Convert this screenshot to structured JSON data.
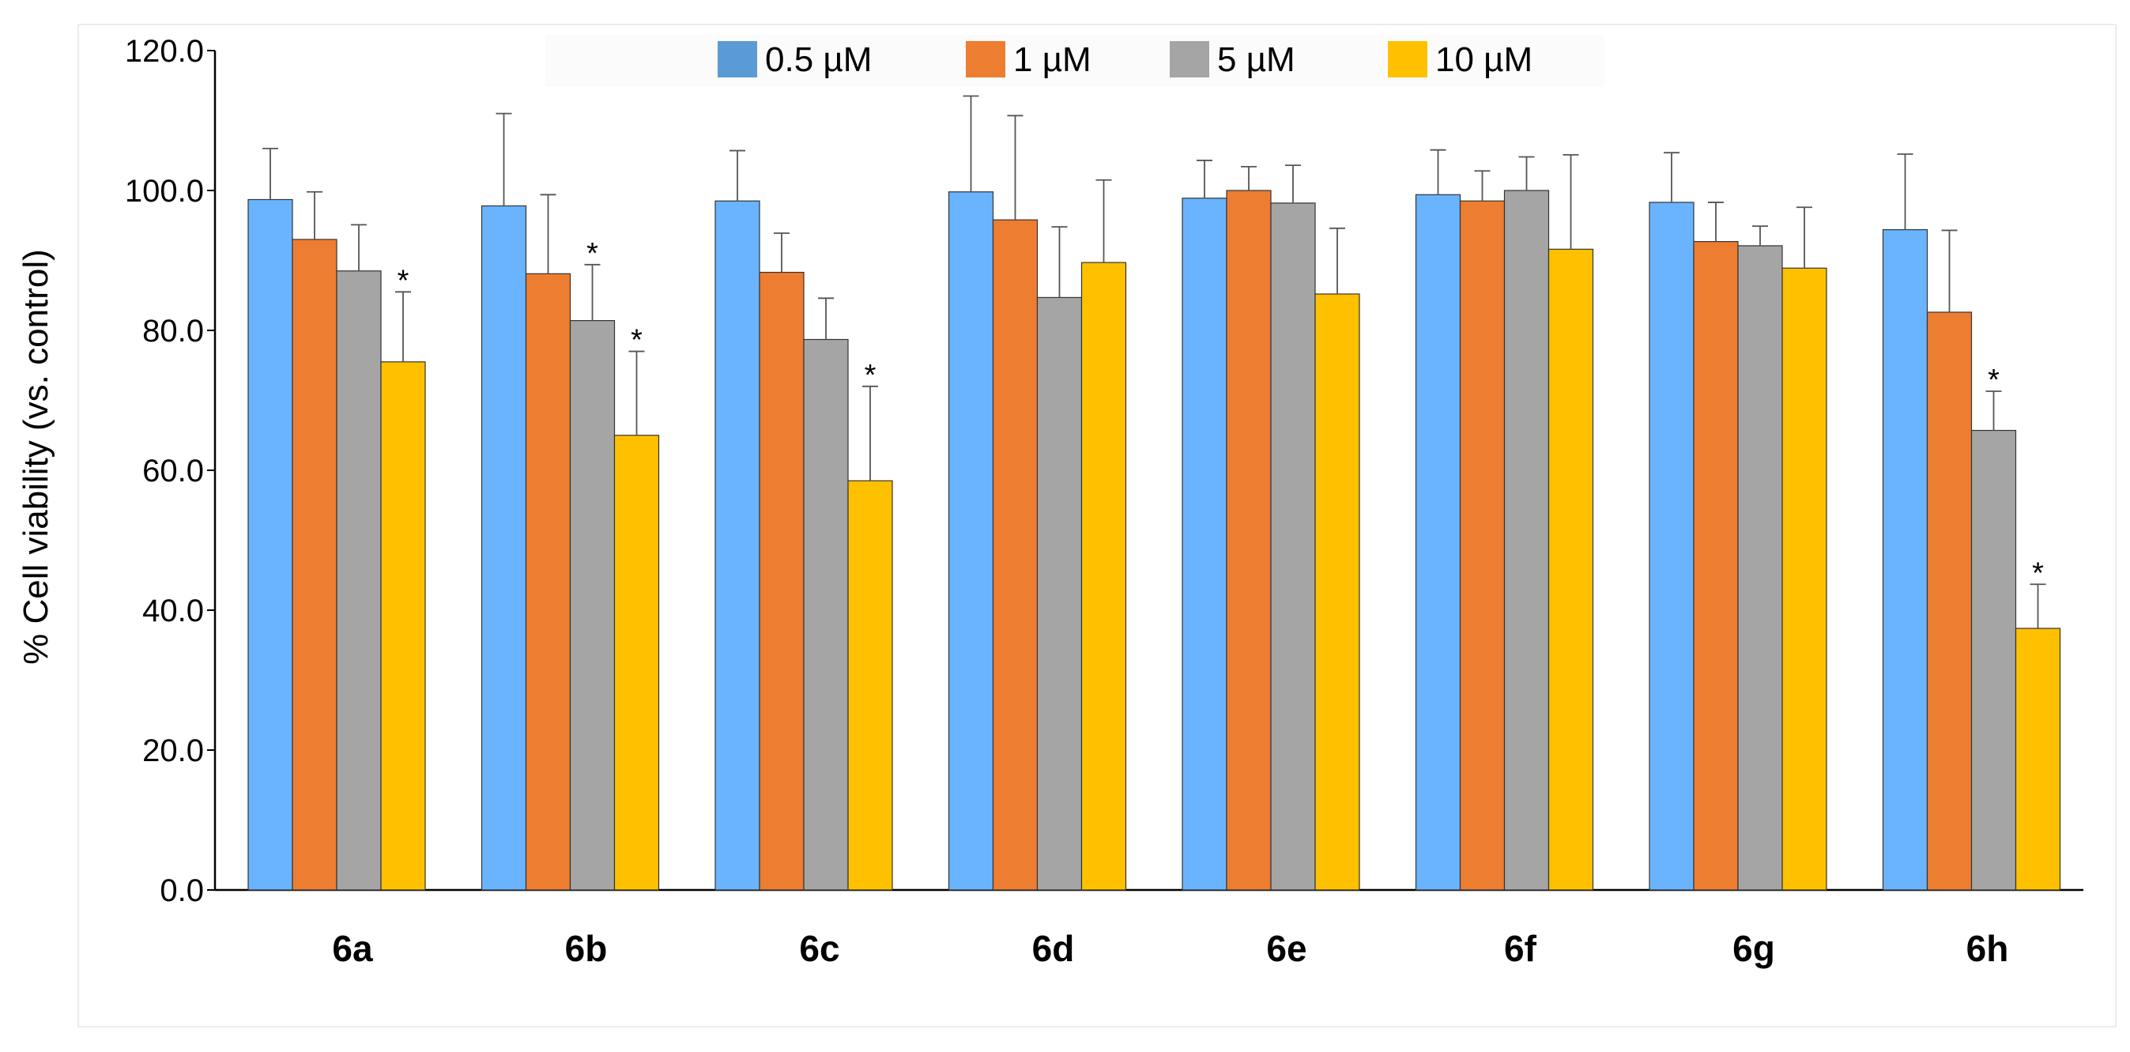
{
  "chart_data": {
    "type": "bar",
    "title": "",
    "xlabel": "",
    "ylabel": "% Cell viability (vs. control)",
    "ylim": [
      0,
      120
    ],
    "yticks": [
      "0.0",
      "20.0",
      "40.0",
      "60.0",
      "80.0",
      "100.0",
      "120.0"
    ],
    "grid": false,
    "legend_position": "top-center",
    "categories": [
      "6a",
      "6b",
      "6c",
      "6d",
      "6e",
      "6f",
      "6g",
      "6h"
    ],
    "series": [
      {
        "name": "0.5 µM",
        "color": "#6ab4ff",
        "legend_color": "#5b9bd5",
        "values": [
          98.7,
          97.8,
          98.5,
          99.8,
          98.9,
          99.4,
          98.3,
          94.4
        ],
        "errors": [
          7.3,
          13.2,
          7.2,
          13.7,
          5.4,
          6.4,
          7.1,
          10.8
        ],
        "significant": [
          false,
          false,
          false,
          false,
          false,
          false,
          false,
          false
        ]
      },
      {
        "name": "1 µM",
        "color": "#ed7d31",
        "legend_color": "#ed7d31",
        "values": [
          93.0,
          88.1,
          88.3,
          95.8,
          100.0,
          98.5,
          92.7,
          82.6
        ],
        "errors": [
          6.8,
          11.3,
          5.6,
          14.9,
          3.4,
          4.3,
          5.6,
          11.7
        ],
        "significant": [
          false,
          false,
          false,
          false,
          false,
          false,
          false,
          false
        ]
      },
      {
        "name": "5 µM",
        "color": "#a5a5a5",
        "legend_color": "#a5a5a5",
        "values": [
          88.5,
          81.4,
          78.7,
          84.7,
          98.2,
          100.0,
          92.1,
          65.7
        ],
        "errors": [
          6.6,
          8.0,
          5.9,
          10.1,
          5.4,
          4.8,
          2.8,
          5.6
        ],
        "significant": [
          false,
          true,
          false,
          false,
          false,
          false,
          false,
          true
        ]
      },
      {
        "name": "10 µM",
        "color": "#ffc000",
        "legend_color": "#ffc000",
        "values": [
          75.5,
          65.0,
          58.5,
          89.7,
          85.2,
          91.6,
          88.9,
          37.4
        ],
        "errors": [
          10.0,
          12.0,
          13.5,
          11.8,
          9.4,
          13.5,
          8.7,
          6.3
        ],
        "significant": [
          true,
          true,
          true,
          false,
          false,
          false,
          false,
          true
        ]
      }
    ],
    "significance_marker": "*"
  }
}
